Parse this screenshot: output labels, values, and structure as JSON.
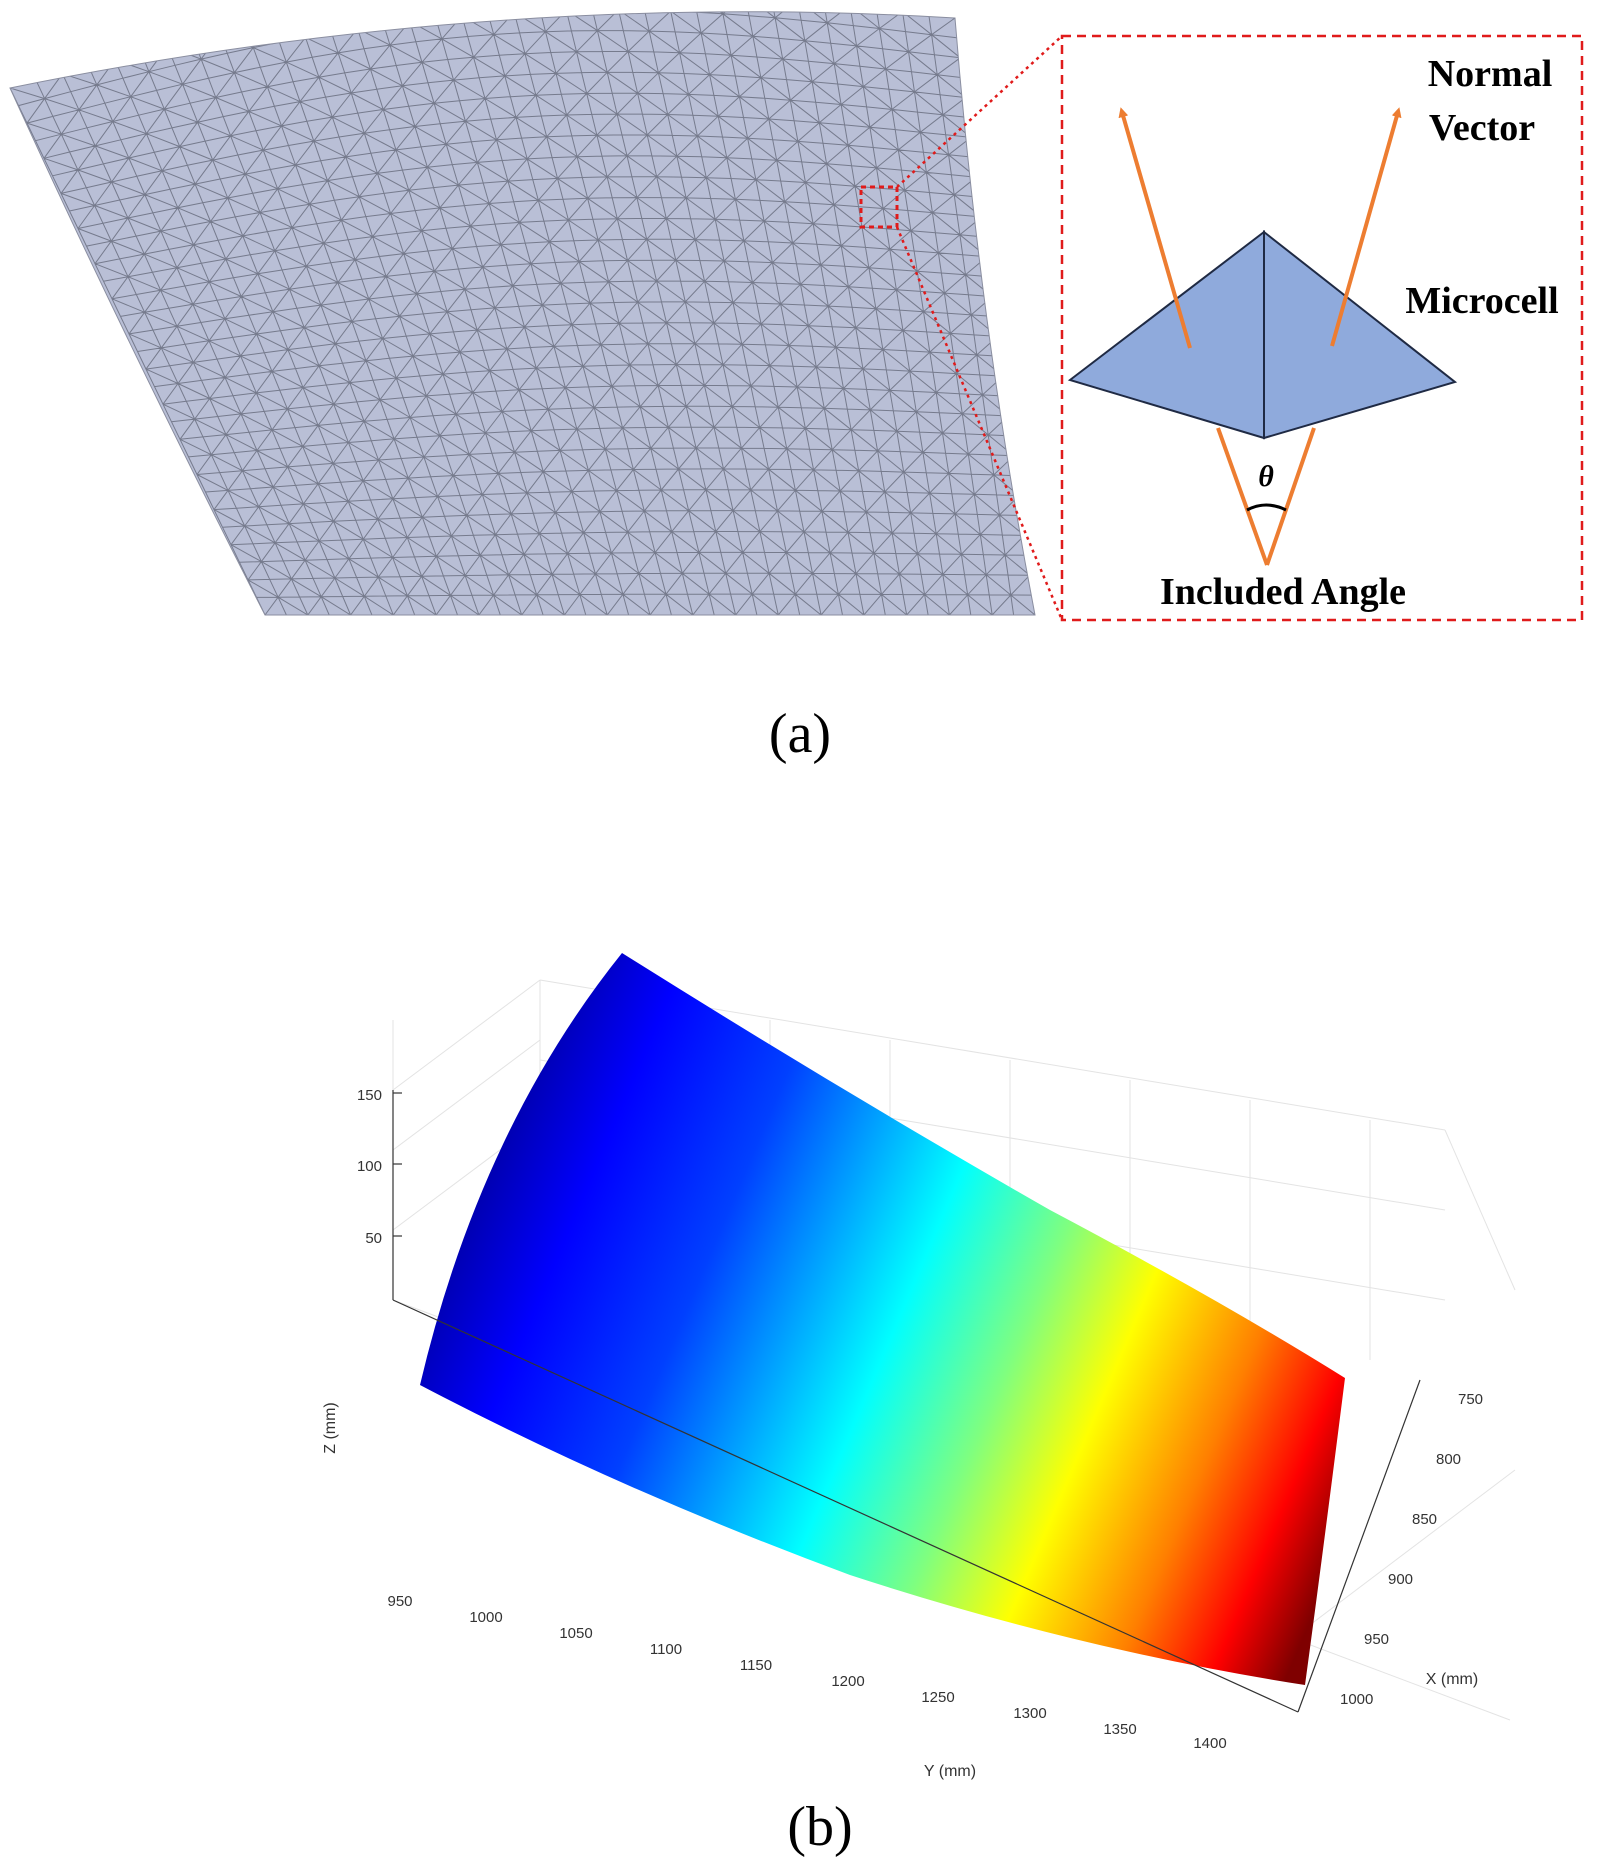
{
  "panel_a": {
    "caption": "(a)",
    "labels": {
      "normal_vector_line1": "Normal",
      "normal_vector_line2": "Vector",
      "microcell": "Microcell",
      "theta": "θ",
      "included_angle": "Included Angle"
    },
    "colors": {
      "mesh_fill": "#b9bfd6",
      "mesh_line": "#6a6e80",
      "microcell_fill": "#8faadc",
      "normal_arrow": "#ed7d31",
      "callout_dash": "#e01b1b"
    }
  },
  "panel_b": {
    "caption": "(b)",
    "z_axis": {
      "label": "Z (mm)",
      "ticks": [
        "50",
        "100",
        "150"
      ]
    },
    "y_axis": {
      "label": "Y (mm)",
      "ticks": [
        "950",
        "1000",
        "1050",
        "1100",
        "1150",
        "1200",
        "1250",
        "1300",
        "1350",
        "1400"
      ]
    },
    "x_axis": {
      "label": "X (mm)",
      "ticks": [
        "750",
        "800",
        "850",
        "900",
        "950",
        "1000"
      ]
    },
    "colormap": "jet"
  }
}
